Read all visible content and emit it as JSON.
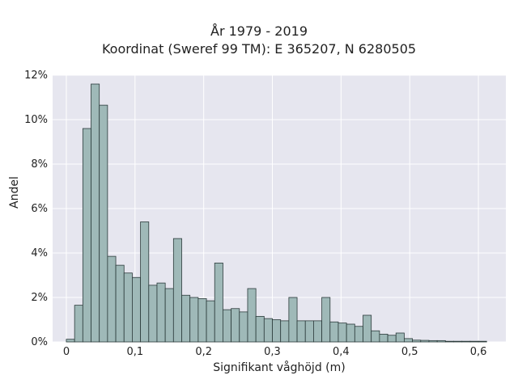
{
  "chart_data": {
    "type": "bar",
    "title": [
      "År 1979 - 2019",
      "Koordinat (Sweref 99 TM): E 365207, N 6280505"
    ],
    "xlabel": "Signifikant våghöjd (m)",
    "ylabel": "Andel",
    "xlim": [
      -0.02,
      0.64
    ],
    "ylim": [
      0,
      12
    ],
    "x_ticks": [
      {
        "value": 0,
        "label": "0"
      },
      {
        "value": 0.1,
        "label": "0,1"
      },
      {
        "value": 0.2,
        "label": "0,2"
      },
      {
        "value": 0.3,
        "label": "0,3"
      },
      {
        "value": 0.4,
        "label": "0,4"
      },
      {
        "value": 0.5,
        "label": "0,5"
      },
      {
        "value": 0.6,
        "label": "0,6"
      }
    ],
    "y_ticks": [
      {
        "value": 0,
        "label": "0%"
      },
      {
        "value": 2,
        "label": "2%"
      },
      {
        "value": 4,
        "label": "4%"
      },
      {
        "value": 6,
        "label": "6%"
      },
      {
        "value": 8,
        "label": "8%"
      },
      {
        "value": 10,
        "label": "10%"
      },
      {
        "value": 12,
        "label": "12%"
      }
    ],
    "bin_start": 0,
    "bin_width": 0.012,
    "values": [
      0.12,
      1.65,
      9.6,
      11.6,
      10.65,
      3.85,
      3.45,
      3.1,
      2.9,
      5.4,
      2.55,
      2.65,
      2.4,
      4.65,
      2.1,
      2.0,
      1.95,
      1.85,
      3.55,
      1.45,
      1.5,
      1.35,
      2.4,
      1.15,
      1.05,
      1.0,
      0.95,
      2.0,
      0.95,
      0.95,
      0.95,
      2.0,
      0.9,
      0.85,
      0.8,
      0.7,
      1.2,
      0.5,
      0.35,
      0.3,
      0.4,
      0.15,
      0.08,
      0.07,
      0.06,
      0.06,
      0.03,
      0.03,
      0.03,
      0.03,
      0.03
    ],
    "grid": true,
    "colors": {
      "plot_background": "#e6e6ef",
      "bar_fill": "#9fb9b8",
      "bar_edge": "#2b3a3a",
      "grid": "#ffffff"
    }
  }
}
